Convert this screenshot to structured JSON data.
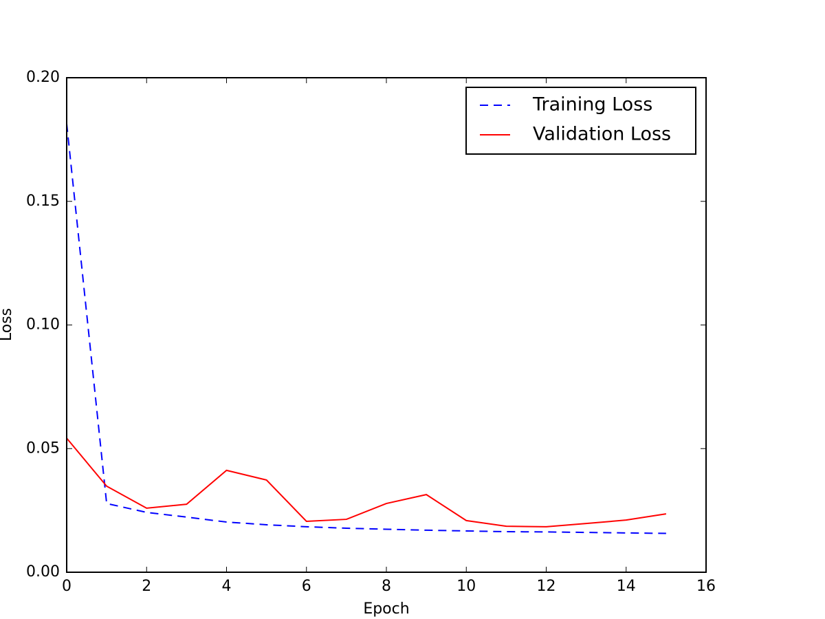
{
  "chart_data": {
    "type": "line",
    "x_label": "Epoch",
    "y_label": "Loss",
    "x": [
      0,
      1,
      2,
      3,
      4,
      5,
      6,
      7,
      8,
      9,
      10,
      11,
      12,
      13,
      14,
      15
    ],
    "series": [
      {
        "name": "Training Loss",
        "color": "#0000ff",
        "linestyle": "dashed",
        "values": [
          0.1814,
          0.0278,
          0.0242,
          0.0223,
          0.0203,
          0.0192,
          0.0184,
          0.0178,
          0.0174,
          0.017,
          0.0167,
          0.0164,
          0.0163,
          0.0161,
          0.0159,
          0.0157
        ]
      },
      {
        "name": "Validation Loss",
        "color": "#ff0000",
        "linestyle": "solid",
        "values": [
          0.0542,
          0.0348,
          0.0259,
          0.0275,
          0.0412,
          0.0373,
          0.0206,
          0.0214,
          0.0278,
          0.0314,
          0.0209,
          0.0186,
          0.0184,
          0.0197,
          0.0211,
          0.0236
        ]
      }
    ],
    "xlim": [
      0,
      16
    ],
    "xticks": [
      0,
      2,
      4,
      6,
      8,
      10,
      12,
      14,
      16
    ],
    "ylim": [
      0,
      0.2
    ],
    "yticks": [
      {
        "value": 0,
        "label": "0.00"
      },
      {
        "value": 0.05,
        "label": "0.05"
      },
      {
        "value": 0.1,
        "label": "0.10"
      },
      {
        "value": 0.15,
        "label": "0.15"
      },
      {
        "value": 0.2,
        "label": "0.20"
      }
    ],
    "grid": false,
    "legend": "upper right"
  }
}
